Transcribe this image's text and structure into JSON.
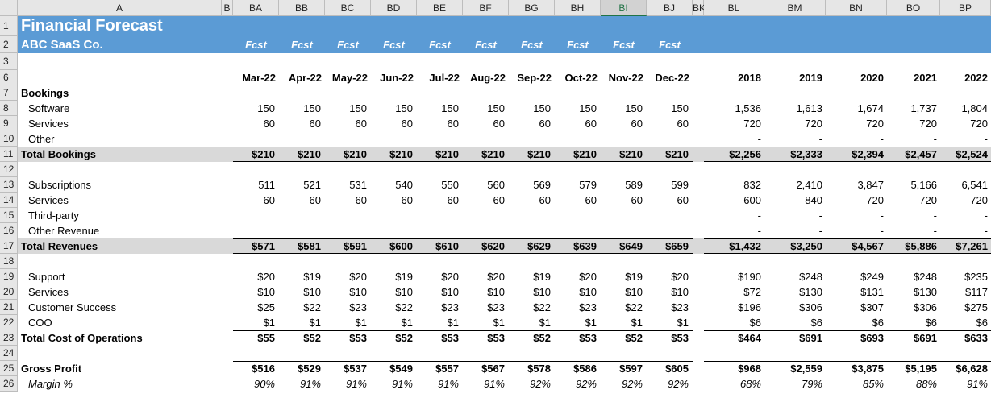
{
  "column_headers": [
    "A",
    "B",
    "BA",
    "BB",
    "BC",
    "BD",
    "BE",
    "BF",
    "BG",
    "BH",
    "BI",
    "BJ",
    "BK",
    "BL",
    "BM",
    "BN",
    "BO",
    "BP"
  ],
  "title": "Financial Forecast",
  "company": "ABC SaaS Co.",
  "fcst_labels": [
    "Fcst",
    "Fcst",
    "Fcst",
    "Fcst",
    "Fcst",
    "Fcst",
    "Fcst",
    "Fcst",
    "Fcst",
    "Fcst"
  ],
  "header_rows": [
    1,
    2,
    3,
    6
  ],
  "months": [
    "Mar-22",
    "Apr-22",
    "May-22",
    "Jun-22",
    "Jul-22",
    "Aug-22",
    "Sep-22",
    "Oct-22",
    "Nov-22",
    "Dec-22"
  ],
  "years": [
    "2018",
    "2019",
    "2020",
    "2021",
    "2022"
  ],
  "rows": [
    {
      "row": 7,
      "label": "Bookings"
    },
    {
      "row": 8,
      "label": "Software",
      "monthly": [
        "150",
        "150",
        "150",
        "150",
        "150",
        "150",
        "150",
        "150",
        "150",
        "150"
      ],
      "annual": [
        "1,536",
        "1,613",
        "1,674",
        "1,737",
        "1,804"
      ]
    },
    {
      "row": 9,
      "label": "Services",
      "monthly": [
        "60",
        "60",
        "60",
        "60",
        "60",
        "60",
        "60",
        "60",
        "60",
        "60"
      ],
      "annual": [
        "720",
        "720",
        "720",
        "720",
        "720"
      ]
    },
    {
      "row": 10,
      "label": "Other",
      "annual": [
        "-",
        "-",
        "-",
        "-",
        "-"
      ]
    },
    {
      "row": 11,
      "label": "Total Bookings",
      "monthly": [
        "$210",
        "$210",
        "$210",
        "$210",
        "$210",
        "$210",
        "$210",
        "$210",
        "$210",
        "$210"
      ],
      "annual": [
        "$2,256",
        "$2,333",
        "$2,394",
        "$2,457",
        "$2,524"
      ]
    },
    {
      "row": 12
    },
    {
      "row": 13,
      "label": "Subscriptions",
      "monthly": [
        "511",
        "521",
        "531",
        "540",
        "550",
        "560",
        "569",
        "579",
        "589",
        "599"
      ],
      "annual": [
        "832",
        "2,410",
        "3,847",
        "5,166",
        "6,541"
      ]
    },
    {
      "row": 14,
      "label": "Services",
      "monthly": [
        "60",
        "60",
        "60",
        "60",
        "60",
        "60",
        "60",
        "60",
        "60",
        "60"
      ],
      "annual": [
        "600",
        "840",
        "720",
        "720",
        "720"
      ]
    },
    {
      "row": 15,
      "label": "Third-party",
      "annual": [
        "-",
        "-",
        "-",
        "-",
        "-"
      ]
    },
    {
      "row": 16,
      "label": "Other Revenue",
      "annual": [
        "-",
        "-",
        "-",
        "-",
        "-"
      ]
    },
    {
      "row": 17,
      "label": "Total Revenues",
      "monthly": [
        "$571",
        "$581",
        "$591",
        "$600",
        "$610",
        "$620",
        "$629",
        "$639",
        "$649",
        "$659"
      ],
      "annual": [
        "$1,432",
        "$3,250",
        "$4,567",
        "$5,886",
        "$7,261"
      ]
    },
    {
      "row": 18
    },
    {
      "row": 19,
      "label": "Support",
      "monthly": [
        "$20",
        "$19",
        "$20",
        "$19",
        "$20",
        "$20",
        "$19",
        "$20",
        "$19",
        "$20"
      ],
      "annual": [
        "$190",
        "$248",
        "$249",
        "$248",
        "$235"
      ]
    },
    {
      "row": 20,
      "label": "Services",
      "monthly": [
        "$10",
        "$10",
        "$10",
        "$10",
        "$10",
        "$10",
        "$10",
        "$10",
        "$10",
        "$10"
      ],
      "annual": [
        "$72",
        "$130",
        "$131",
        "$130",
        "$117"
      ]
    },
    {
      "row": 21,
      "label": "Customer Success",
      "monthly": [
        "$25",
        "$22",
        "$23",
        "$22",
        "$23",
        "$23",
        "$22",
        "$23",
        "$22",
        "$23"
      ],
      "annual": [
        "$196",
        "$306",
        "$307",
        "$306",
        "$275"
      ]
    },
    {
      "row": 22,
      "label": "COO",
      "monthly": [
        "$1",
        "$1",
        "$1",
        "$1",
        "$1",
        "$1",
        "$1",
        "$1",
        "$1",
        "$1"
      ],
      "annual": [
        "$6",
        "$6",
        "$6",
        "$6",
        "$6"
      ]
    },
    {
      "row": 23,
      "label": "Total Cost of Operations",
      "monthly": [
        "$55",
        "$52",
        "$53",
        "$52",
        "$53",
        "$53",
        "$52",
        "$53",
        "$52",
        "$53"
      ],
      "annual": [
        "$464",
        "$691",
        "$693",
        "$691",
        "$633"
      ]
    },
    {
      "row": 24
    },
    {
      "row": 25,
      "label": "Gross Profit",
      "monthly": [
        "$516",
        "$529",
        "$537",
        "$549",
        "$557",
        "$567",
        "$578",
        "$586",
        "$597",
        "$605"
      ],
      "annual": [
        "$968",
        "$2,559",
        "$3,875",
        "$5,195",
        "$6,628"
      ]
    },
    {
      "row": 26,
      "label": "Margin %",
      "monthly": [
        "90%",
        "91%",
        "91%",
        "91%",
        "91%",
        "91%",
        "92%",
        "92%",
        "92%",
        "92%"
      ],
      "annual": [
        "68%",
        "79%",
        "85%",
        "88%",
        "91%"
      ]
    }
  ]
}
